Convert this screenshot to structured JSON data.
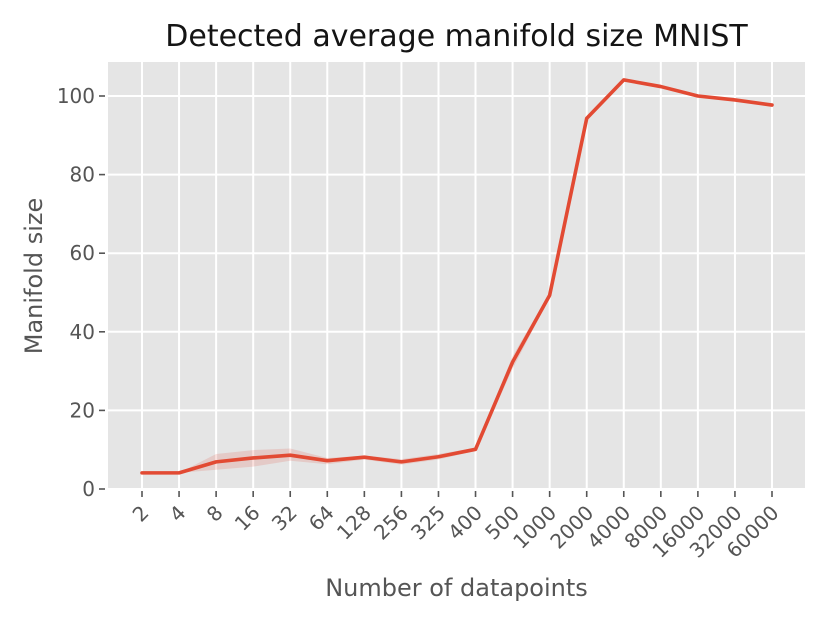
{
  "chart_data": {
    "type": "line",
    "title": "Detected average manifold size MNIST",
    "xlabel": "Number of datapoints",
    "ylabel": "Manifold size",
    "categories": [
      "2",
      "4",
      "8",
      "16",
      "32",
      "64",
      "128",
      "256",
      "325",
      "400",
      "500",
      "1000",
      "2000",
      "4000",
      "8000",
      "16000",
      "32000",
      "60000"
    ],
    "series": [
      {
        "name": "mean-manifold-size",
        "color": "#E24A33",
        "values": [
          4.1,
          4.1,
          6.9,
          7.9,
          8.6,
          7.2,
          8.1,
          6.9,
          8.2,
          10.1,
          32.3,
          49.3,
          94.3,
          104.1,
          102.4,
          100.0,
          99.0,
          97.7
        ]
      }
    ],
    "band": {
      "name": "confidence-band",
      "color": "#E24A33",
      "opacity": 0.17,
      "upper": [
        4.1,
        4.1,
        8.9,
        9.9,
        10.3,
        7.9,
        8.5,
        7.6,
        8.9,
        10.5,
        33.8,
        49.9,
        94.3,
        104.1,
        102.4,
        100.0,
        99.0,
        97.7
      ],
      "lower": [
        4.1,
        4.1,
        4.9,
        5.7,
        7.2,
        6.3,
        7.5,
        6.2,
        7.5,
        9.7,
        30.6,
        48.7,
        94.3,
        104.1,
        102.4,
        100.0,
        99.0,
        97.7
      ]
    },
    "yticks": [
      0,
      20,
      40,
      60,
      80,
      100
    ],
    "ylim": [
      -0.3,
      108.7
    ],
    "grid": true,
    "legend_position": "none",
    "x_tick_rotation_deg": 45,
    "colors": {
      "plot_background": "#e5e5e5",
      "grid": "#ffffff",
      "line": "#E24A33",
      "tick_text": "#555555",
      "axis_label_text": "#555555",
      "title_text": "#141414",
      "tick_mark": "#555555"
    }
  }
}
